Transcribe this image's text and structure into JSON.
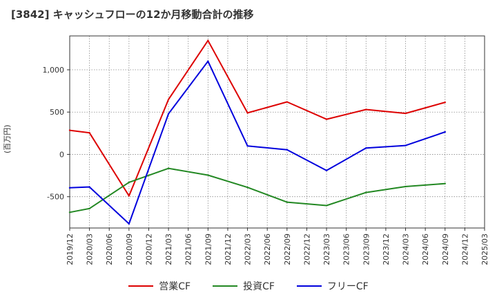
{
  "chart_data": {
    "type": "line",
    "title": "[3842]  キャッシュフローの12か月移動合計の推移",
    "ylabel": "(百万円)",
    "xlabel": "",
    "ylim": [
      -870,
      1400
    ],
    "yticks": [
      -500,
      0,
      500,
      1000
    ],
    "ytick_labels": [
      "-500",
      "0",
      "500",
      "1,000"
    ],
    "categories": [
      "2019/12",
      "2020/03",
      "2020/06",
      "2020/09",
      "2020/12",
      "2021/03",
      "2021/06",
      "2021/09",
      "2021/12",
      "2022/03",
      "2022/06",
      "2022/09",
      "2022/12",
      "2023/03",
      "2023/06",
      "2023/09",
      "2023/12",
      "2024/03",
      "2024/06",
      "2024/09",
      "2024/12",
      "2025/03"
    ],
    "grid": true,
    "series": [
      {
        "name": "営業CF",
        "color": "#dd0000",
        "values": [
          285,
          255,
          null,
          -490,
          null,
          650,
          null,
          1345,
          null,
          490,
          null,
          620,
          null,
          415,
          null,
          530,
          null,
          485,
          null,
          615,
          null,
          null
        ]
      },
      {
        "name": "投資CF",
        "color": "#228822",
        "values": [
          -685,
          -640,
          null,
          -330,
          null,
          -165,
          null,
          -245,
          null,
          -390,
          null,
          -565,
          null,
          -605,
          null,
          -450,
          null,
          -380,
          null,
          -345,
          null,
          null
        ]
      },
      {
        "name": "フリーCF",
        "color": "#0000dd",
        "values": [
          -395,
          -385,
          null,
          -820,
          null,
          480,
          null,
          1100,
          null,
          100,
          null,
          55,
          null,
          -190,
          null,
          75,
          null,
          105,
          null,
          265,
          null,
          null
        ]
      }
    ]
  }
}
